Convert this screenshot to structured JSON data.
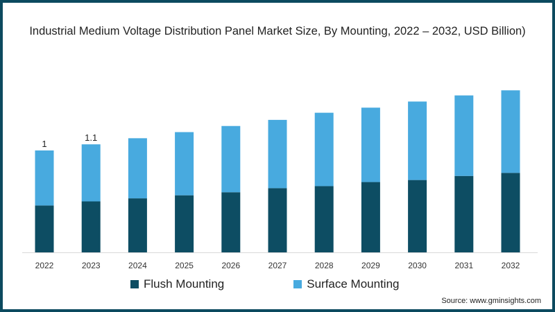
{
  "chart_data": {
    "type": "bar",
    "stacked": true,
    "title": "Industrial Medium Voltage Distribution Panel Market Size, By Mounting, 2022 – 2032, USD Billion)",
    "categories": [
      "2022",
      "2023",
      "2024",
      "2025",
      "2026",
      "2027",
      "2028",
      "2029",
      "2030",
      "2031",
      "2032"
    ],
    "series": [
      {
        "name": "Flush Mounting",
        "color": "#0d4d63",
        "values": [
          0.46,
          0.5,
          0.53,
          0.56,
          0.59,
          0.63,
          0.65,
          0.69,
          0.71,
          0.75,
          0.78
        ]
      },
      {
        "name": "Surface Mounting",
        "color": "#48aadf",
        "values": [
          0.54,
          0.56,
          0.59,
          0.62,
          0.65,
          0.67,
          0.72,
          0.73,
          0.77,
          0.79,
          0.81
        ]
      }
    ],
    "data_labels": [
      {
        "category": "2022",
        "label": "1"
      },
      {
        "category": "2023",
        "label": "1.1"
      }
    ],
    "xlabel": "",
    "ylabel": "",
    "ylim": [
      0,
      1.75
    ],
    "grid": false,
    "legend": "bottom"
  },
  "source": "Source: www.gminsights.com"
}
